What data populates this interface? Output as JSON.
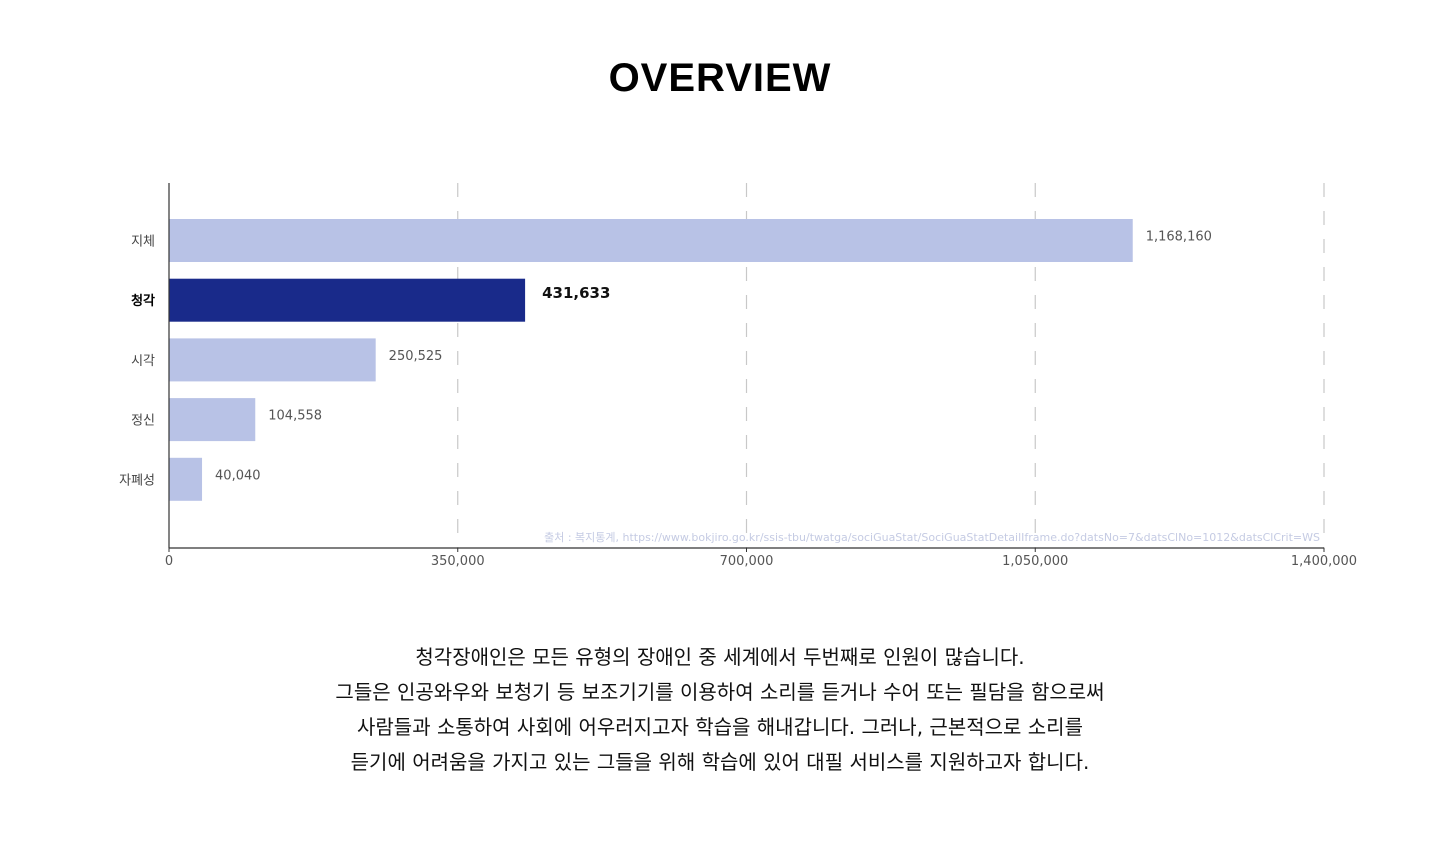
{
  "title": "OVERVIEW",
  "chart_data": {
    "type": "bar",
    "orientation": "horizontal",
    "categories": [
      "지체",
      "청각",
      "시각",
      "정신",
      "자폐성"
    ],
    "values": [
      1168160,
      431633,
      250525,
      104558,
      40040
    ],
    "value_labels": [
      "1,168,160",
      "431,633",
      "250,525",
      "104,558",
      "40,040"
    ],
    "highlight_category": "청각",
    "xlim": [
      0,
      1400000
    ],
    "x_ticks": [
      0,
      350000,
      700000,
      1050000,
      1400000
    ],
    "x_tick_labels": [
      "0",
      "350,000",
      "700,000",
      "1,050,000",
      "1,400,000"
    ],
    "grid": "vertical dashed",
    "colors": {
      "default": "#b8c2e6",
      "highlight": "#192a8a",
      "grid": "#c8c8c8",
      "axis": "#333333",
      "source": "#c5cbe3"
    },
    "source": "출처 : 복지통계, https://www.bokjiro.go.kr/ssis-tbu/twatga/sociGuaStat/SociGuaStatDetailIframe.do?datsNo=7&datsClNo=1012&datsClCrit=WS"
  },
  "description": [
    "청각장애인은 모든 유형의 장애인 중 세계에서 두번째로 인원이 많습니다.",
    "그들은 인공와우와 보청기 등 보조기기를 이용하여 소리를 듣거나 수어 또는 필담을 함으로써",
    "사람들과 소통하여 사회에 어우러지고자 학습을 해내갑니다. 그러나, 근본적으로 소리를",
    "듣기에 어려움을 가지고 있는 그들을 위해 학습에 있어 대필 서비스를 지원하고자 합니다."
  ]
}
